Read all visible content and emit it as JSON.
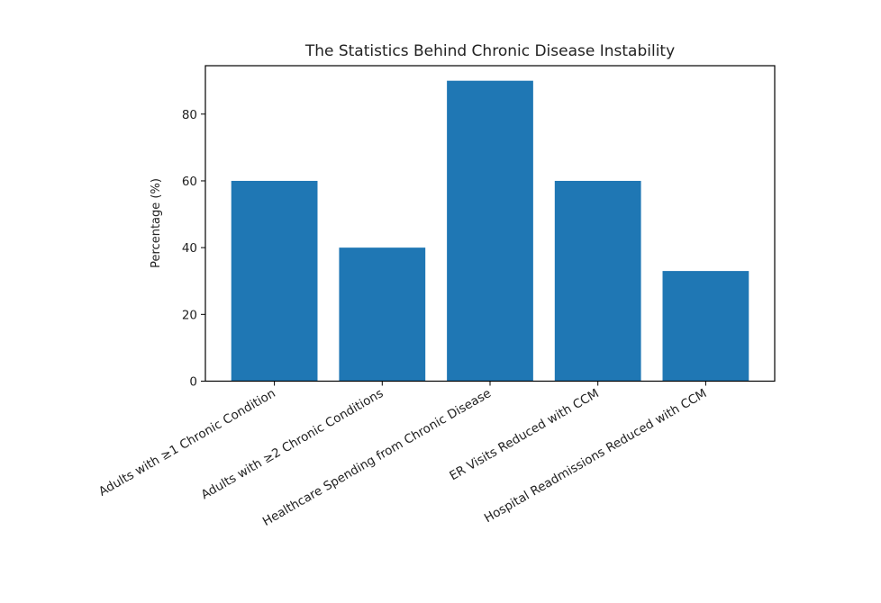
{
  "chart_data": {
    "type": "bar",
    "title": "The Statistics Behind Chronic Disease Instability",
    "xlabel": "",
    "ylabel": "Percentage (%)",
    "categories": [
      "Adults with ≥1 Chronic Condition",
      "Adults with ≥2 Chronic Conditions",
      "Healthcare Spending from Chronic Disease",
      "ER Visits Reduced with CCM",
      "Hospital Readmissions Reduced with CCM"
    ],
    "values": [
      60,
      40,
      90,
      60,
      33
    ],
    "ylim": [
      0,
      94.5
    ],
    "yticks": [
      0,
      20,
      40,
      60,
      80
    ],
    "xtick_rotation": 30,
    "grid": false,
    "bar_color": "#1f77b4"
  }
}
